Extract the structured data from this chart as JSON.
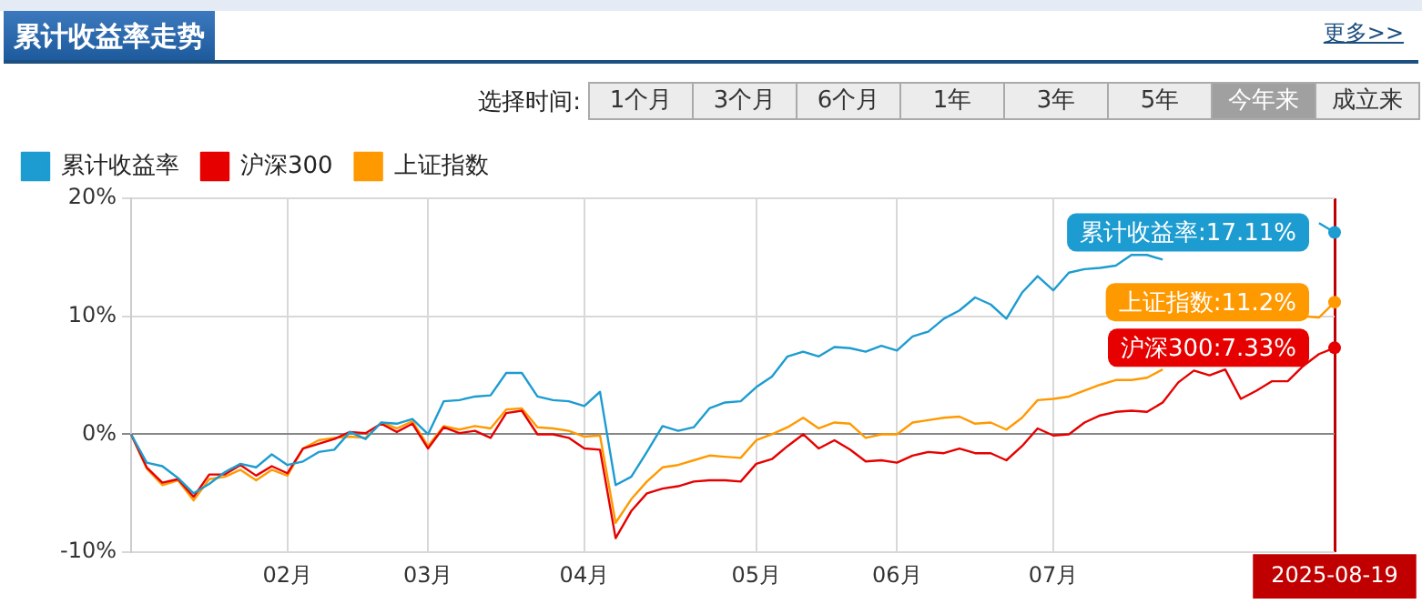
{
  "chart_data": {
    "type": "line",
    "title": "累计收益率走势",
    "annotations": [
      "更多>>",
      "选择时间:",
      "1个月",
      "3个月",
      "6个月",
      "1年",
      "3年",
      "5年",
      "今年来",
      "成立来"
    ],
    "categories": [
      null,
      null,
      null,
      null,
      null,
      null,
      null,
      null,
      null,
      null,
      "02月",
      null,
      null,
      null,
      null,
      null,
      null,
      null,
      null,
      "03月",
      null,
      null,
      null,
      null,
      null,
      null,
      null,
      null,
      null,
      "04月",
      null,
      null,
      null,
      null,
      null,
      null,
      null,
      null,
      null,
      null,
      "05月",
      null,
      null,
      null,
      null,
      null,
      null,
      null,
      null,
      "06月",
      null,
      null,
      null,
      null,
      null,
      null,
      null,
      null,
      null,
      "07月",
      null,
      null,
      null,
      null,
      null,
      null,
      null,
      null,
      null,
      null,
      null,
      null,
      null,
      null,
      null,
      null,
      null,
      "2025-08-19"
    ],
    "series": [
      {
        "name": "累计收益率",
        "color": "#1c9cd0",
        "values": [
          0,
          -2.4,
          -2.7,
          -3.7,
          -5.0,
          -4.2,
          -3.2,
          -2.5,
          -2.8,
          -1.7,
          -2.6,
          -2.3,
          -1.5,
          -1.3,
          0.2,
          -0.4,
          1.0,
          0.9,
          1.3,
          0,
          2.8,
          2.9,
          3.2,
          3.3,
          5.2,
          5.2,
          3.2,
          2.9,
          2.8,
          2.4,
          3.6,
          -4.3,
          -3.6,
          -1.5,
          0.7,
          0.3,
          0.6,
          2.2,
          2.7,
          2.8,
          4.0,
          4.9,
          6.6,
          7.0,
          6.6,
          7.4,
          7.3,
          7.0,
          7.5,
          7.1,
          8.3,
          8.7,
          9.8,
          10.5,
          11.6,
          11.0,
          9.8,
          12.0,
          13.4,
          12.2,
          13.7,
          14.0,
          14.1,
          14.3,
          15.2,
          15.2,
          14.8,
          null,
          null,
          null,
          null,
          null,
          null,
          null,
          null,
          null,
          17.9,
          17.11
        ],
        "value_labels": [
          null,
          null,
          null,
          null,
          null,
          null,
          null,
          null,
          null,
          null,
          null,
          null,
          null,
          null,
          null,
          null,
          null,
          null,
          null,
          null,
          null,
          null,
          null,
          null,
          null,
          null,
          null,
          null,
          null,
          null,
          null,
          null,
          null,
          null,
          null,
          null,
          null,
          null,
          null,
          null,
          null,
          null,
          null,
          null,
          null,
          null,
          null,
          null,
          null,
          null,
          null,
          null,
          null,
          null,
          null,
          null,
          null,
          null,
          null,
          null,
          null,
          null,
          null,
          null,
          null,
          null,
          null,
          null,
          null,
          null,
          null,
          null,
          null,
          null,
          null,
          null,
          null,
          "累计收益率:17.11%"
        ]
      },
      {
        "name": "沪深300",
        "color": "#e60000",
        "values": [
          0,
          -2.8,
          -4.1,
          -3.8,
          -5.3,
          -3.4,
          -3.4,
          -2.6,
          -3.5,
          -2.7,
          -3.3,
          -1.2,
          -0.8,
          -0.4,
          0.2,
          0.1,
          0.9,
          0.2,
          0.9,
          -1.2,
          0.6,
          0.1,
          0.3,
          -0.3,
          1.8,
          2.0,
          0,
          0,
          -0.3,
          -1.2,
          -1.3,
          -8.8,
          -6.5,
          -5.0,
          -4.6,
          -4.4,
          -4.0,
          -3.9,
          -3.9,
          -4.0,
          -2.5,
          -2.1,
          -1.0,
          0.0,
          -1.2,
          -0.5,
          -1.3,
          -2.3,
          -2.2,
          -2.4,
          -1.8,
          -1.5,
          -1.6,
          -1.2,
          -1.6,
          -1.6,
          -2.2,
          -1.0,
          0.5,
          -0.1,
          0.0,
          1.0,
          1.6,
          1.9,
          2.0,
          1.9,
          2.7,
          4.4,
          5.4,
          5.0,
          5.5,
          3.0,
          3.7,
          4.5,
          4.5,
          5.8,
          6.8,
          7.33
        ],
        "value_labels": [
          null,
          null,
          null,
          null,
          null,
          null,
          null,
          null,
          null,
          null,
          null,
          null,
          null,
          null,
          null,
          null,
          null,
          null,
          null,
          null,
          null,
          null,
          null,
          null,
          null,
          null,
          null,
          null,
          null,
          null,
          null,
          null,
          null,
          null,
          null,
          null,
          null,
          null,
          null,
          null,
          null,
          null,
          null,
          null,
          null,
          null,
          null,
          null,
          null,
          null,
          null,
          null,
          null,
          null,
          null,
          null,
          null,
          null,
          null,
          null,
          null,
          null,
          null,
          null,
          null,
          null,
          null,
          null,
          null,
          null,
          null,
          null,
          null,
          null,
          null,
          null,
          null,
          "沪深300:7.33%"
        ]
      },
      {
        "name": "上证指数",
        "color": "#ff9900",
        "values": [
          0,
          -2.9,
          -4.3,
          -3.9,
          -5.6,
          -3.8,
          -3.6,
          -3.0,
          -3.9,
          -3.0,
          -3.5,
          -1.2,
          -0.5,
          -0.3,
          -0.2,
          -0.3,
          1.0,
          0.5,
          1.1,
          -1.0,
          0.7,
          0.4,
          0.7,
          0.5,
          2.1,
          2.2,
          0.6,
          0.5,
          0.3,
          -0.2,
          -0.1,
          -7.5,
          -5.5,
          -4.0,
          -2.8,
          -2.6,
          -2.2,
          -1.8,
          -1.9,
          -2.0,
          -0.5,
          0.0,
          0.6,
          1.4,
          0.5,
          1.0,
          0.9,
          -0.3,
          0.0,
          0.0,
          1.0,
          1.2,
          1.4,
          1.5,
          0.9,
          1.0,
          0.4,
          1.4,
          2.9,
          3.0,
          3.2,
          3.7,
          4.2,
          4.6,
          4.6,
          4.8,
          5.5,
          null,
          null,
          null,
          null,
          null,
          null,
          null,
          null,
          10.0,
          9.9,
          11.2
        ],
        "value_labels": [
          null,
          null,
          null,
          null,
          null,
          null,
          null,
          null,
          null,
          null,
          null,
          null,
          null,
          null,
          null,
          null,
          null,
          null,
          null,
          null,
          null,
          null,
          null,
          null,
          null,
          null,
          null,
          null,
          null,
          null,
          null,
          null,
          null,
          null,
          null,
          null,
          null,
          null,
          null,
          null,
          null,
          null,
          null,
          null,
          null,
          null,
          null,
          null,
          null,
          null,
          null,
          null,
          null,
          null,
          null,
          null,
          null,
          null,
          null,
          null,
          null,
          null,
          null,
          null,
          null,
          null,
          null,
          null,
          null,
          null,
          null,
          null,
          null,
          null,
          null,
          null,
          null,
          "上证指数:11.2%"
        ]
      }
    ],
    "ylim": [
      -10,
      20
    ],
    "yticks": [
      {
        "value": -10,
        "label": "-10%"
      },
      {
        "value": 0,
        "label": "0%"
      },
      {
        "value": 10,
        "label": "10%"
      },
      {
        "value": 20,
        "label": "20%"
      }
    ],
    "grid": true,
    "legend": "top left"
  }
}
